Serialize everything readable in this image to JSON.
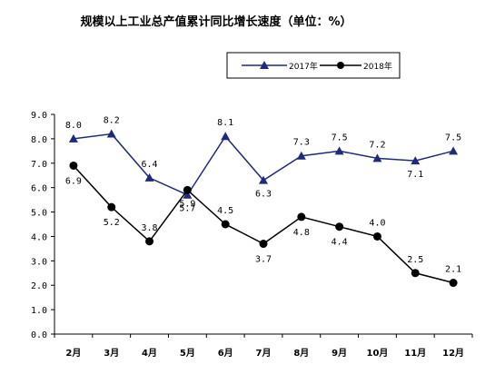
{
  "chart_data": {
    "type": "line",
    "title": "规模以上工业总产值累计同比增长速度（单位：%）",
    "categories": [
      "2月",
      "3月",
      "4月",
      "5月",
      "6月",
      "7月",
      "8月",
      "9月",
      "10月",
      "11月",
      "12月"
    ],
    "series": [
      {
        "name": "2017年",
        "marker": "triangle",
        "color": "#1f2a7a",
        "values": [
          8.0,
          8.2,
          6.4,
          5.7,
          8.1,
          6.3,
          7.3,
          7.5,
          7.2,
          7.1,
          7.5
        ],
        "labels": [
          "8.0",
          "8.2",
          "6.4",
          "5.7",
          "8.1",
          "6.3",
          "7.3",
          "7.5",
          "7.2",
          "7.1",
          "7.5"
        ]
      },
      {
        "name": "2018年",
        "marker": "circle",
        "color": "#000000",
        "values": [
          6.9,
          5.2,
          3.8,
          5.9,
          4.5,
          3.7,
          4.8,
          4.4,
          4.0,
          2.5,
          2.1
        ],
        "labels": [
          "6.9",
          "5.2",
          "3.8",
          "5.9",
          "4.5",
          "3.7",
          "4.8",
          "4.4",
          "4.0",
          "2.5",
          "2.1"
        ]
      }
    ],
    "y_ticks": [
      "0.0",
      "1.0",
      "2.0",
      "3.0",
      "4.0",
      "5.0",
      "6.0",
      "7.0",
      "8.0",
      "9.0"
    ],
    "ylim": [
      0,
      9
    ],
    "grid": false,
    "legend_position": "top-right"
  }
}
